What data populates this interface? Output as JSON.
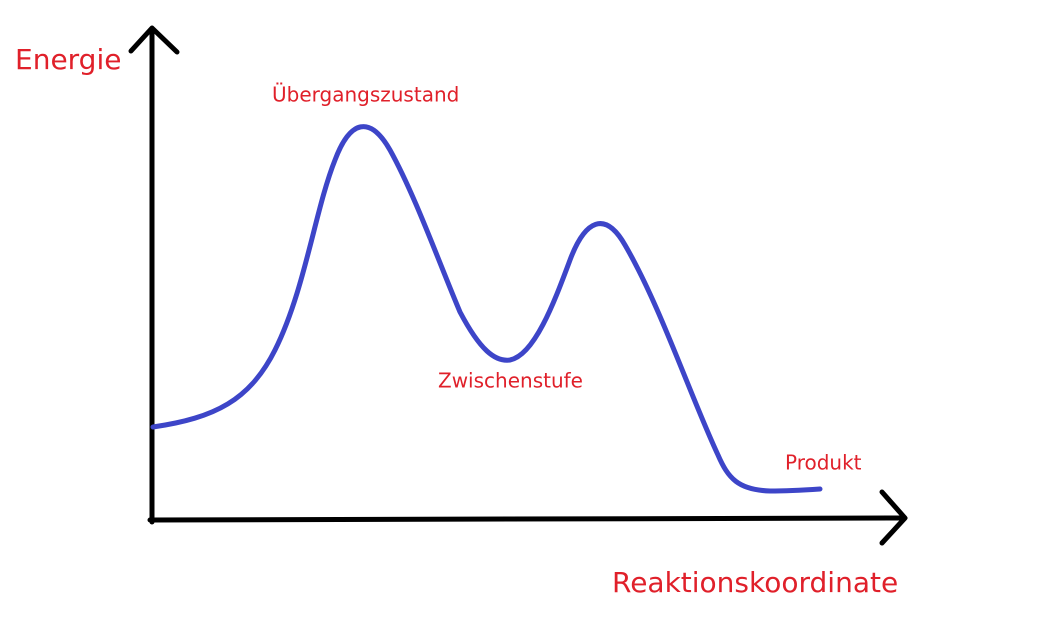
{
  "axes": {
    "y_label": "Energie",
    "x_label": "Reaktionskoordinate"
  },
  "annotations": {
    "transition_state": "Übergangszustand",
    "intermediate": "Zwischenstufe",
    "product": "Produkt"
  }
}
